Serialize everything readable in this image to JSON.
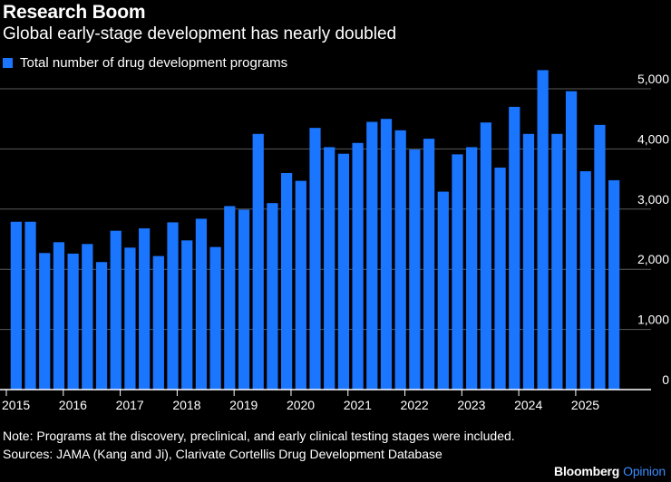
{
  "title": "Research Boom",
  "subtitle": "Global early-stage development has nearly doubled",
  "legend": {
    "label": "Total number of drug development programs",
    "color": "#1a75ff"
  },
  "note": "Note: Programs at the discovery, preclinical, and early clinical testing stages were included.",
  "sources": "Sources: JAMA (Kang and Ji), Clarivate Cortellis Drug Development Database",
  "branding": {
    "main": "Bloomberg",
    "accent": "Opinion",
    "accent_color": "#3b8cff"
  },
  "colors": {
    "background": "#000000",
    "bar": "#1a75ff",
    "grid": "#5a5a5a",
    "axis": "#ffffff",
    "text": "#ffffff"
  },
  "chart_data": {
    "type": "bar",
    "title": "Research Boom",
    "subtitle": "Global early-stage development has nearly doubled",
    "xlabel": "",
    "ylabel": "",
    "ylim": [
      0,
      5000
    ],
    "yticks": [
      0,
      1000,
      2000,
      3000,
      4000,
      5000
    ],
    "ytick_labels": [
      "0",
      "1,000",
      "2,000",
      "3,000",
      "4,000",
      "5,000"
    ],
    "y_axis_side": "right",
    "grid": true,
    "legend_position": "top-left",
    "xtick_labels": [
      "2015",
      "2016",
      "2017",
      "2018",
      "2019",
      "2020",
      "2021",
      "2022",
      "2023",
      "2024",
      "2025"
    ],
    "categories": [
      "2015 Q1",
      "2015 Q2",
      "2015 Q3",
      "2015 Q4",
      "2016 Q1",
      "2016 Q2",
      "2016 Q3",
      "2016 Q4",
      "2017 Q1",
      "2017 Q2",
      "2017 Q3",
      "2017 Q4",
      "2018 Q1",
      "2018 Q2",
      "2018 Q3",
      "2018 Q4",
      "2019 Q1",
      "2019 Q2",
      "2019 Q3",
      "2019 Q4",
      "2020 Q1",
      "2020 Q2",
      "2020 Q3",
      "2020 Q4",
      "2021 Q1",
      "2021 Q2",
      "2021 Q3",
      "2021 Q4",
      "2022 Q1",
      "2022 Q2",
      "2022 Q3",
      "2022 Q4",
      "2023 Q1",
      "2023 Q2",
      "2023 Q3",
      "2023 Q4",
      "2024 Q1",
      "2024 Q2",
      "2024 Q3",
      "2024 Q4",
      "2025 Q1",
      "2025 Q2",
      "2025 Q3"
    ],
    "series": [
      {
        "name": "Total number of drug development programs",
        "values": [
          2790,
          2790,
          2270,
          2450,
          2260,
          2420,
          2120,
          2640,
          2360,
          2680,
          2220,
          2780,
          2480,
          2840,
          2370,
          3050,
          2990,
          4250,
          3100,
          3600,
          3470,
          4350,
          4030,
          3920,
          4100,
          4450,
          4500,
          4310,
          3990,
          4170,
          3290,
          3910,
          4030,
          4440,
          3690,
          4700,
          4250,
          5310,
          4250,
          4960,
          3630,
          4400,
          3480
        ]
      }
    ]
  }
}
